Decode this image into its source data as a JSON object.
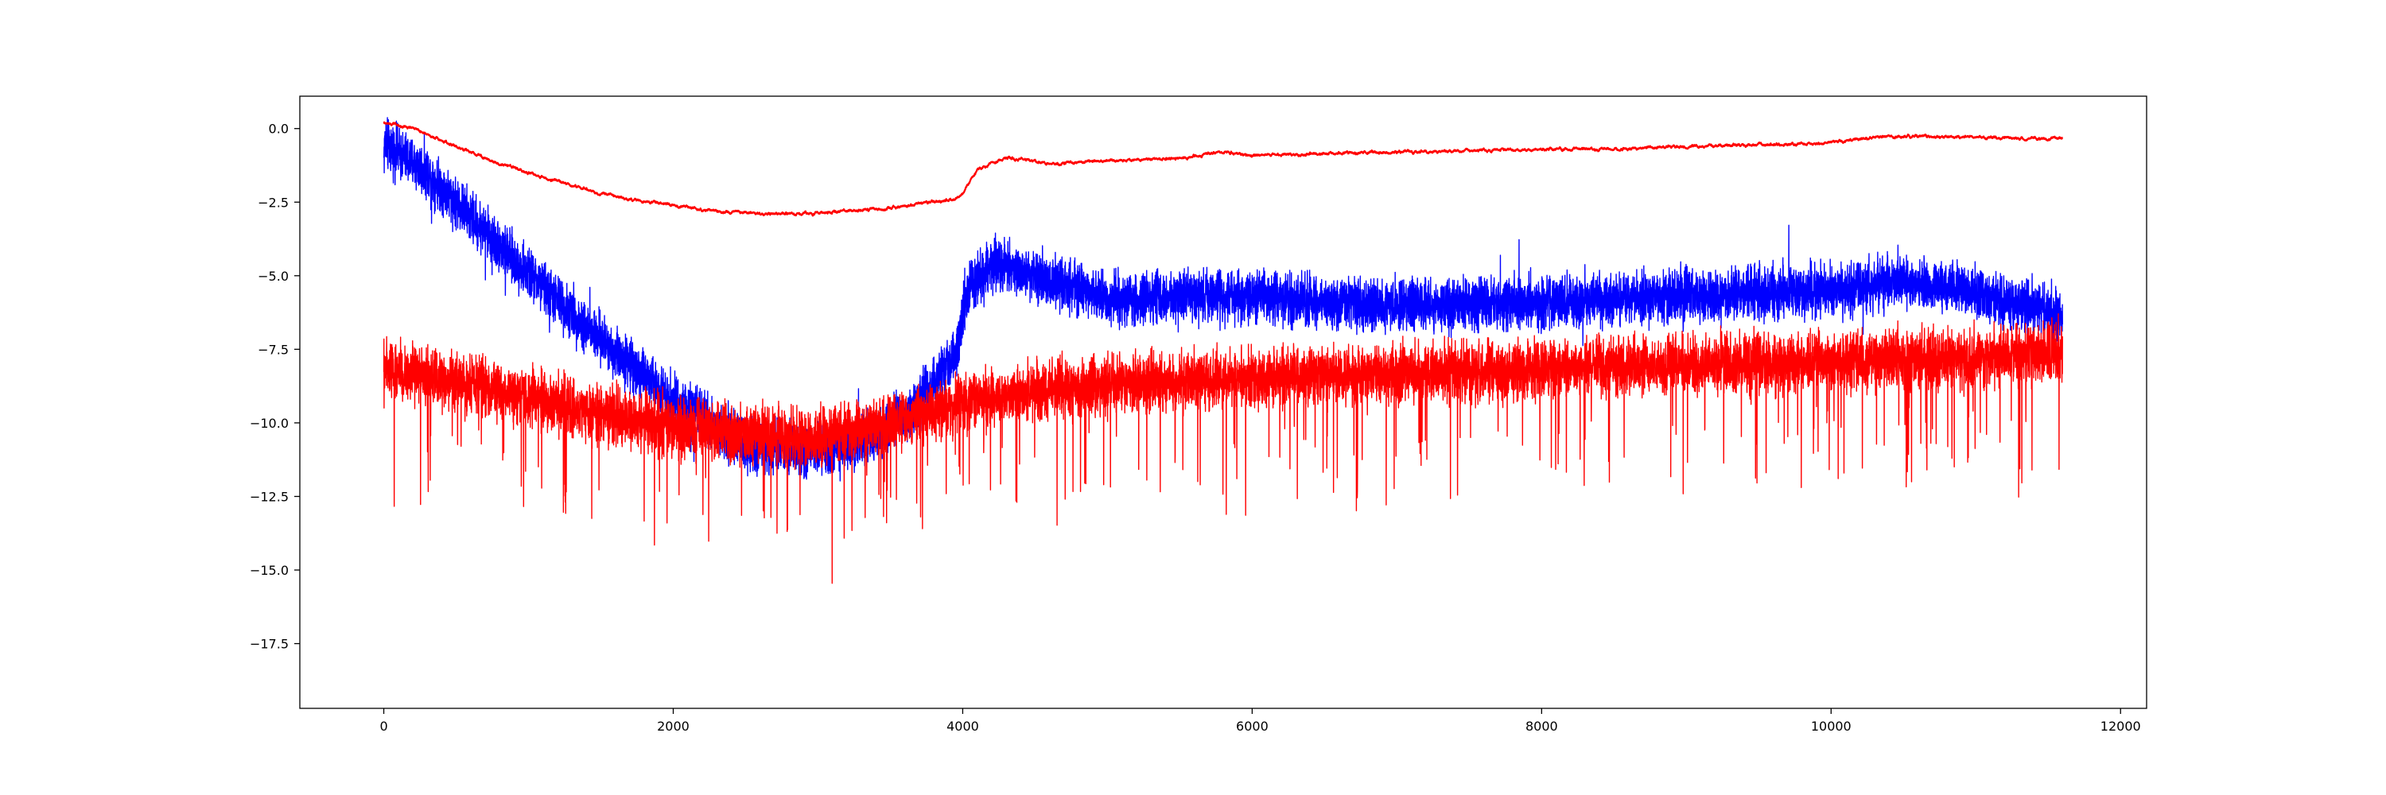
{
  "chart_data": {
    "type": "line",
    "title": "",
    "xlabel": "",
    "ylabel": "",
    "xlim": [
      -580,
      12180
    ],
    "ylim": [
      -19.7,
      1.1
    ],
    "x_ticks": [
      0,
      2000,
      4000,
      6000,
      8000,
      10000,
      12000
    ],
    "x_tick_labels": [
      "0",
      "2000",
      "4000",
      "6000",
      "8000",
      "10000",
      "12000"
    ],
    "y_ticks": [
      0.0,
      -2.5,
      -5.0,
      -7.5,
      -10.0,
      -12.5,
      -15.0,
      -17.5
    ],
    "y_tick_labels": [
      "0.0",
      "−2.5",
      "−5.0",
      "−7.5",
      "−10.0",
      "−12.5",
      "−15.0",
      "−17.5"
    ],
    "grid": false,
    "legend": "none",
    "n_points": 11600,
    "series": [
      {
        "color": "#0000ff",
        "style": "noisy",
        "trend_x": [
          0,
          300,
          900,
          1500,
          2000,
          2500,
          3000,
          3400,
          3700,
          3950,
          4050,
          4200,
          4500,
          5000,
          6000,
          7000,
          8000,
          9000,
          10000,
          10500,
          11000,
          11600
        ],
        "trend_y": [
          -0.5,
          -1.5,
          -4.5,
          -7.2,
          -9.2,
          -10.8,
          -11.0,
          -10.5,
          -9.3,
          -7.6,
          -5.3,
          -4.6,
          -5.0,
          -5.8,
          -5.7,
          -6.0,
          -5.9,
          -5.7,
          -5.5,
          -5.2,
          -5.6,
          -6.3
        ],
        "noise_amplitude": 0.85,
        "spike_count": 30,
        "spike_size": 1.6
      },
      {
        "color": "#ff0000",
        "style": "noisy",
        "trend_x": [
          0,
          500,
          1000,
          1500,
          2000,
          2500,
          3000,
          3500,
          4000,
          4500,
          5000,
          6000,
          7000,
          8000,
          9000,
          10000,
          11000,
          11600
        ],
        "trend_y": [
          -8.2,
          -8.6,
          -9.1,
          -9.7,
          -10.1,
          -10.4,
          -10.5,
          -10.0,
          -9.3,
          -8.9,
          -8.7,
          -8.5,
          -8.3,
          -8.2,
          -8.0,
          -7.9,
          -7.8,
          -7.6
        ],
        "noise_amplitude": 0.95,
        "spike_count": 220,
        "spike_size": 4.2
      },
      {
        "color": "#ff0000",
        "style": "smooth",
        "trend_x": [
          0,
          200,
          500,
          800,
          1000,
          1200,
          1500,
          1800,
          2000,
          2300,
          2600,
          2900,
          3200,
          3500,
          3800,
          3950,
          4000,
          4050,
          4100,
          4300,
          4600,
          5000,
          5500,
          5800,
          6000,
          6500,
          7000,
          7500,
          8000,
          8500,
          9000,
          9500,
          10000,
          10300,
          10500,
          11000,
          11600
        ],
        "trend_y": [
          0.2,
          0.0,
          -0.6,
          -1.2,
          -1.5,
          -1.8,
          -2.2,
          -2.5,
          -2.6,
          -2.8,
          -2.9,
          -2.9,
          -2.8,
          -2.7,
          -2.5,
          -2.4,
          -2.2,
          -1.8,
          -1.4,
          -1.0,
          -1.2,
          -1.1,
          -1.0,
          -0.8,
          -0.9,
          -0.85,
          -0.8,
          -0.75,
          -0.7,
          -0.7,
          -0.6,
          -0.55,
          -0.5,
          -0.3,
          -0.25,
          -0.3,
          -0.35
        ],
        "noise_amplitude": 0.04,
        "spike_count": 0,
        "spike_size": 0
      }
    ]
  }
}
